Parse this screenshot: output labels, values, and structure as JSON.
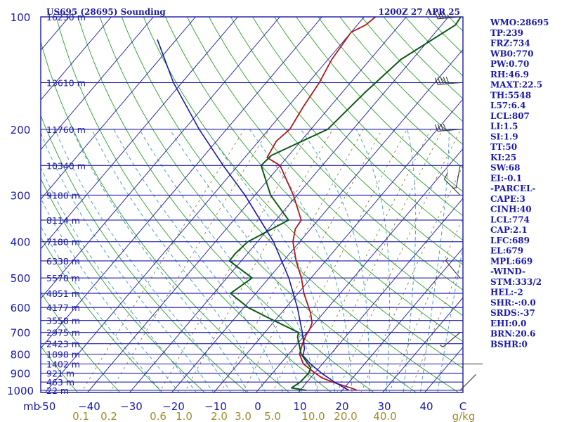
{
  "header": {
    "station_title": "US695 (28695) Sounding",
    "time_label": "1200Z 27 APR 25"
  },
  "indices": [
    "WMO:28695",
    "TP:239",
    "FRZ:734",
    "WB0:770",
    "PW:0.70",
    "RH:46.9",
    "MAXT:22.5",
    "TH:5548",
    "L57:6.4",
    "LCL:807",
    "LI:1.5",
    "SI:1.9",
    "TT:50",
    "KI:25",
    "SW:68",
    "EI:-0.1",
    "-PARCEL-",
    "CAPE:3",
    "CINH:40",
    "LCL:774",
    "CAP:2.1",
    "LFC:689",
    "EL:679",
    "MPL:669",
    "-WIND-",
    "STM:333/2",
    "HEL:-2",
    "SHR:-:0.0",
    "SRDS:-37",
    "EHI:0.0",
    "BRN:20.6",
    "BSHR:0"
  ],
  "colors": {
    "frame": "#1a1aa8",
    "isobar": "#1a1aa8",
    "isotherm": "#1a1aa8",
    "dry_adiabat": "#2aa02a",
    "moist_adiabat": "#50a0c8",
    "mixing_ratio": "#8c7a3c",
    "temperature": "#b01818",
    "dewpoint": "#0e5a14",
    "parcel": "#1818b0",
    "wind": "#333333"
  },
  "chart_data": {
    "type": "line",
    "chart_kind": "skew-t log-p sounding",
    "xlabel": "",
    "ylabel": "mb",
    "ylim": [
      1000,
      100
    ],
    "xlim": [
      -50,
      0
    ],
    "y_scale": "log",
    "pressure_ticks": [
      100,
      200,
      300,
      400,
      500,
      600,
      700,
      800,
      900,
      1000
    ],
    "pressure_tick_labels": [
      "100",
      "200",
      "300",
      "400",
      "500",
      "600",
      "700",
      "800",
      "900",
      "1000"
    ],
    "axis_unit_label": "mb",
    "temperature_ticks": [
      -50,
      -40,
      -30,
      -20,
      -10,
      0,
      10,
      20,
      30,
      40
    ],
    "temperature_tick_labels": [
      "-50",
      "−40",
      "−30",
      "−20",
      "−10",
      "0",
      "10",
      "20",
      "30",
      "40"
    ],
    "temperature_end_label": "C",
    "mixing_ratio_labels": [
      "0.1",
      "0.2",
      "0.6",
      "1.0",
      "2.0",
      "3.0",
      "5.0",
      "10.0",
      "20.0",
      "40.0"
    ],
    "mixing_ratio_unit": "g/kg",
    "height_labels": [
      {
        "p": 100,
        "label": "16230 m"
      },
      {
        "p": 150,
        "label": "13610 m"
      },
      {
        "p": 200,
        "label": "11760 m"
      },
      {
        "p": 250,
        "label": "10340 m"
      },
      {
        "p": 300,
        "label": "9180 m"
      },
      {
        "p": 350,
        "label": "8114 m"
      },
      {
        "p": 400,
        "label": "7180 m"
      },
      {
        "p": 450,
        "label": "6338 m"
      },
      {
        "p": 500,
        "label": "5570 m"
      },
      {
        "p": 550,
        "label": "4851 m"
      },
      {
        "p": 600,
        "label": "4177 m"
      },
      {
        "p": 650,
        "label": "3558 m"
      },
      {
        "p": 700,
        "label": "2975 m"
      },
      {
        "p": 750,
        "label": "2423 m"
      },
      {
        "p": 800,
        "label": "1898 m"
      },
      {
        "p": 850,
        "label": "1402 m"
      },
      {
        "p": 900,
        "label": "921 m"
      },
      {
        "p": 950,
        "label": "463 m"
      },
      {
        "p": 1000,
        "label": "22 m"
      }
    ],
    "series": [
      {
        "id": "temperature",
        "points": [
          [
            1000,
            23.5
          ],
          [
            990,
            22.3
          ],
          [
            950,
            16.0
          ],
          [
            925,
            12.6
          ],
          [
            900,
            10.2
          ],
          [
            850,
            5.5
          ],
          [
            800,
            2.6
          ],
          [
            750,
            1.2
          ],
          [
            710,
            0.3
          ],
          [
            690,
            0.1
          ],
          [
            660,
            -0.7
          ],
          [
            620,
            -3.1
          ],
          [
            550,
            -8.6
          ],
          [
            500,
            -12.3
          ],
          [
            450,
            -17.0
          ],
          [
            400,
            -21.6
          ],
          [
            370,
            -23.6
          ],
          [
            350,
            -24.0
          ],
          [
            300,
            -30.9
          ],
          [
            250,
            -40.0
          ],
          [
            238,
            -44.7
          ],
          [
            215,
            -45.8
          ],
          [
            200,
            -45.0
          ],
          [
            175,
            -46.3
          ],
          [
            150,
            -47.4
          ],
          [
            130,
            -49.1
          ],
          [
            110,
            -50.0
          ],
          [
            105,
            -48.0
          ],
          [
            100,
            -47.3
          ]
        ]
      },
      {
        "id": "dewpoint",
        "points": [
          [
            1000,
            11.5
          ],
          [
            985,
            7.5
          ],
          [
            950,
            8.4
          ],
          [
            900,
            8.6
          ],
          [
            870,
            8.0
          ],
          [
            800,
            3.0
          ],
          [
            720,
            -1.3
          ],
          [
            700,
            -2.0
          ],
          [
            640,
            -12.0
          ],
          [
            600,
            -19.0
          ],
          [
            550,
            -26.0
          ],
          [
            500,
            -24.0
          ],
          [
            450,
            -32.8
          ],
          [
            430,
            -32.9
          ],
          [
            400,
            -32.3
          ],
          [
            350,
            -27.0
          ],
          [
            300,
            -36.3
          ],
          [
            250,
            -44.5
          ],
          [
            235,
            -44.1
          ],
          [
            200,
            -36.0
          ],
          [
            160,
            -34.6
          ],
          [
            130,
            -32.7
          ],
          [
            110,
            -28.0
          ],
          [
            105,
            -26.7
          ],
          [
            100,
            -27.1
          ]
        ]
      },
      {
        "id": "parcel",
        "points": [
          [
            1000,
            21.6
          ],
          [
            950,
            16.5
          ],
          [
            900,
            11.7
          ],
          [
            850,
            7.2
          ],
          [
            807,
            3.7
          ],
          [
            774,
            2.7
          ],
          [
            700,
            -1.1
          ],
          [
            600,
            -7.3
          ],
          [
            500,
            -15.3
          ],
          [
            400,
            -26.2
          ],
          [
            300,
            -42.4
          ],
          [
            250,
            -53.5
          ],
          [
            200,
            -66.5
          ],
          [
            150,
            -82.0
          ],
          [
            115,
            -94.5
          ]
        ]
      }
    ],
    "wind_barbs": [
      {
        "p": 100,
        "dir": 265,
        "spd": 48
      },
      {
        "p": 150,
        "dir": 265,
        "spd": 52
      },
      {
        "p": 200,
        "dir": 265,
        "spd": 42
      },
      {
        "p": 250,
        "dir": 190,
        "spd": 8
      },
      {
        "p": 300,
        "dir": 315,
        "spd": 10
      },
      {
        "p": 500,
        "dir": 320,
        "spd": 6
      },
      {
        "p": 700,
        "dir": 230,
        "spd": 5
      },
      {
        "p": 850,
        "dir": 90,
        "spd": 4
      },
      {
        "p": 1000,
        "dir": 45,
        "spd": 3
      }
    ]
  }
}
